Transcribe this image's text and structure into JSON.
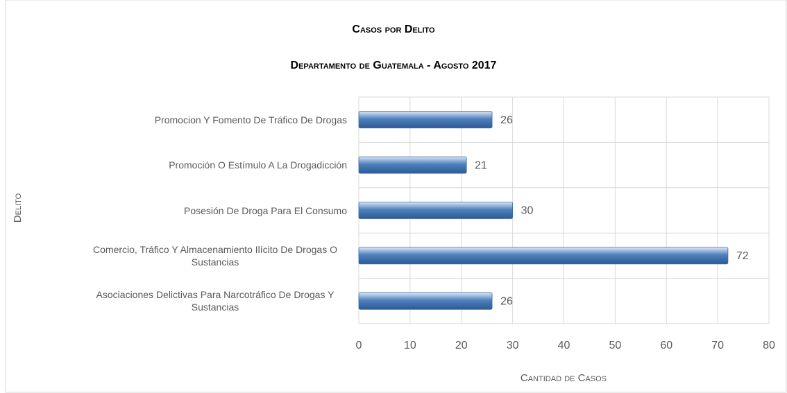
{
  "chart_data": {
    "type": "bar",
    "orientation": "horizontal",
    "title": "Casos por Delito",
    "subtitle": "Departamento de Guatemala - Agosto 2017",
    "xlabel": "Cantidad de Casos",
    "ylabel": "Delito",
    "categories": [
      "Promocion Y Fomento De Tráfico De Drogas",
      "Promoción O Estímulo A La Drogadicción",
      "Posesión De Droga Para El Consumo",
      "Comercio, Tráfico Y Almacenamiento Ilícito De Drogas O Sustancias",
      "Asociaciones Delictivas Para Narcotráfico De Drogas Y Sustancias"
    ],
    "values": [
      26,
      21,
      30,
      72,
      26
    ],
    "color": "#4f81bd",
    "xlim": [
      0,
      80
    ],
    "xticks": [
      0,
      10,
      20,
      30,
      40,
      50,
      60,
      70,
      80
    ],
    "grid": true
  }
}
